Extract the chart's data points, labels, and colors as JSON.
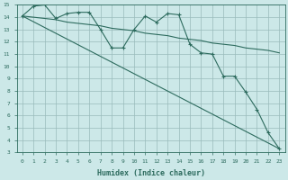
{
  "xlabel": "Humidex (Indice chaleur)",
  "ylabel": "",
  "xlim": [
    -0.5,
    23.5
  ],
  "ylim": [
    3,
    15
  ],
  "yticks": [
    3,
    4,
    5,
    6,
    7,
    8,
    9,
    10,
    11,
    12,
    13,
    14,
    15
  ],
  "xticks": [
    0,
    1,
    2,
    3,
    4,
    5,
    6,
    7,
    8,
    9,
    10,
    11,
    12,
    13,
    14,
    15,
    16,
    17,
    18,
    19,
    20,
    21,
    22,
    23
  ],
  "bg_color": "#cce8e8",
  "grid_color": "#99bbbb",
  "line_color": "#2d6b5e",
  "series": {
    "line1_x": [
      0,
      1,
      2,
      3,
      4,
      5,
      6,
      7,
      8,
      9,
      10,
      11,
      12,
      13,
      14,
      15,
      16,
      17,
      18,
      19,
      20,
      21,
      22,
      23
    ],
    "line1_y": [
      14.1,
      14.9,
      15.0,
      13.9,
      14.3,
      14.4,
      14.4,
      13.0,
      11.5,
      11.5,
      13.0,
      14.1,
      13.6,
      14.3,
      14.2,
      11.8,
      11.1,
      11.0,
      9.2,
      9.2,
      7.9,
      6.5,
      4.6,
      3.3
    ],
    "line2_x": [
      0,
      23
    ],
    "line2_y": [
      14.1,
      3.3
    ],
    "line3_x": [
      0,
      1,
      2,
      3,
      4,
      5,
      6,
      7,
      8,
      9,
      10,
      11,
      12,
      13,
      14,
      15,
      16,
      17,
      18,
      19,
      20,
      21,
      22,
      23
    ],
    "line3_y": [
      14.1,
      14.0,
      13.9,
      13.8,
      13.6,
      13.5,
      13.4,
      13.3,
      13.1,
      13.0,
      12.9,
      12.7,
      12.6,
      12.5,
      12.3,
      12.2,
      12.1,
      11.9,
      11.8,
      11.7,
      11.5,
      11.4,
      11.3,
      11.1
    ]
  }
}
